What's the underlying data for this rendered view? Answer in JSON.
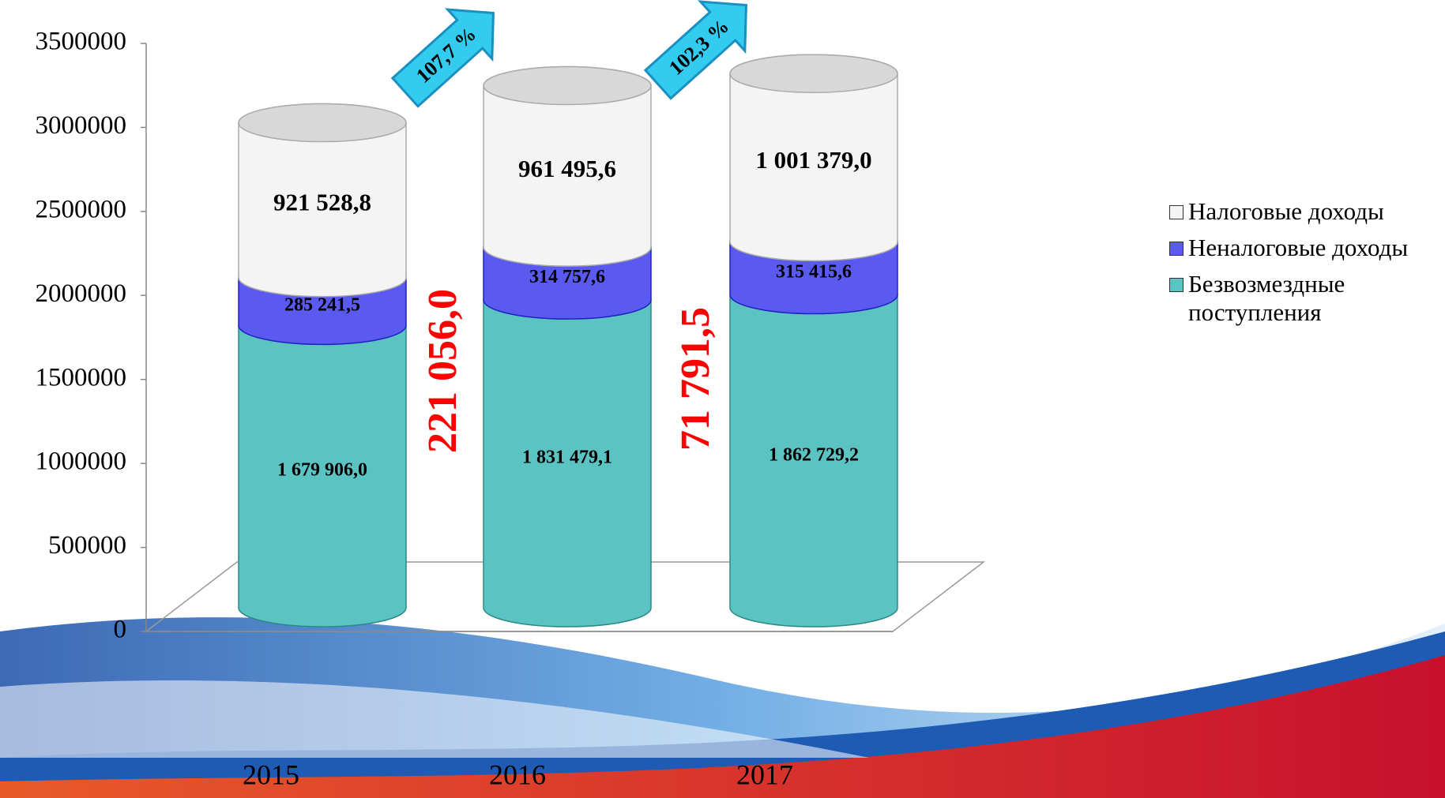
{
  "chart_data": {
    "type": "stacked-cylinder",
    "categories": [
      "2015",
      "2016",
      "2017"
    ],
    "series": [
      {
        "name": "Безвозмездные поступления",
        "color": "#5cc3c3",
        "values": [
          1679906.0,
          1831479.1,
          1862729.2
        ],
        "value_labels": [
          "1 679 906,0",
          "1 831 479,1",
          "1 862 729,2"
        ]
      },
      {
        "name": "Неналоговые доходы",
        "color": "#5a5af0",
        "values": [
          285241.5,
          314757.6,
          315415.6
        ],
        "value_labels": [
          "285 241,5",
          "314 757,6",
          "315 415,6"
        ]
      },
      {
        "name": "Налоговые доходы",
        "color": "#f4f4f4",
        "values": [
          921528.8,
          961495.6,
          1001379.0
        ],
        "value_labels": [
          "921 528,8",
          "961 495,6",
          "1 001 379,0"
        ]
      }
    ],
    "ylim": [
      0,
      3500000
    ],
    "yticks": [
      0,
      500000,
      1000000,
      1500000,
      2000000,
      2500000,
      3000000,
      3500000
    ],
    "growth_amounts": [
      "221 056,0",
      "71 791,5"
    ],
    "growth_percents": [
      "107,7 %",
      "102,3 %"
    ],
    "legend": "right"
  }
}
